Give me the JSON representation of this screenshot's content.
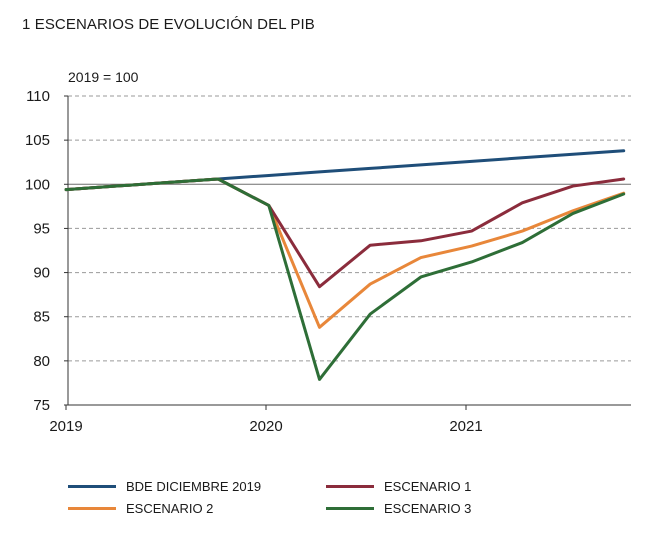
{
  "chart_data": {
    "type": "line",
    "title": "1  ESCENARIOS DE EVOLUCIÓN DEL PIB",
    "unit_label": "2019 = 100",
    "xlabel": "",
    "ylabel": "",
    "x_ticks": [
      "2019",
      "2020",
      "2021"
    ],
    "y_ticks": [
      "75",
      "80",
      "85",
      "90",
      "95",
      "100",
      "105",
      "110"
    ],
    "ylim": [
      75,
      110
    ],
    "grid": "horizontal dashed",
    "reference_line": 100,
    "x": [
      "2019-Q1",
      "2019-Q2",
      "2019-Q3",
      "2019-Q4",
      "2020-Q1",
      "2020-Q2",
      "2020-Q3",
      "2020-Q4",
      "2021-Q1",
      "2021-Q2",
      "2021-Q3",
      "2021-Q4"
    ],
    "series": [
      {
        "name": "BDE DICIEMBRE 2019",
        "color": "#1f4e79",
        "values": [
          99.4,
          99.8,
          100.2,
          100.6,
          101.0,
          101.4,
          101.8,
          102.2,
          102.6,
          103.0,
          103.4,
          103.8
        ]
      },
      {
        "name": "ESCENARIO 1",
        "color": "#8b2c3c",
        "values": [
          99.4,
          99.8,
          100.2,
          100.6,
          97.6,
          88.4,
          93.1,
          93.6,
          94.7,
          97.9,
          99.8,
          100.6
        ]
      },
      {
        "name": "ESCENARIO 2",
        "color": "#e8873a",
        "values": [
          99.4,
          99.8,
          100.2,
          100.6,
          97.6,
          83.8,
          88.7,
          91.7,
          93.0,
          94.7,
          97.0,
          99.0
        ]
      },
      {
        "name": "ESCENARIO 3",
        "color": "#2e6e37",
        "values": [
          99.4,
          99.8,
          100.2,
          100.6,
          97.6,
          77.9,
          85.3,
          89.5,
          91.2,
          93.4,
          96.7,
          98.9
        ]
      }
    ],
    "legend_position": "bottom"
  }
}
